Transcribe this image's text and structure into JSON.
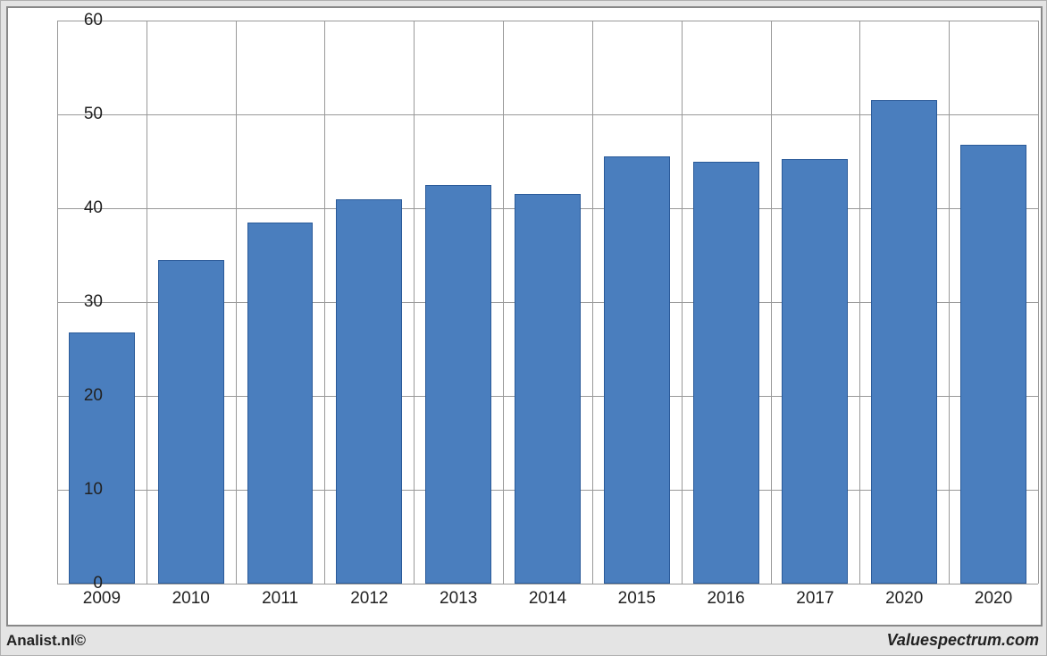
{
  "chart": {
    "type": "bar",
    "categories": [
      "2009",
      "2010",
      "2011",
      "2012",
      "2013",
      "2014",
      "2015",
      "2016",
      "2017",
      "2020",
      "2020"
    ],
    "values": [
      26.8,
      34.5,
      38.5,
      41.0,
      42.5,
      41.5,
      45.5,
      45.0,
      45.2,
      51.5,
      46.8
    ],
    "bar_color": "#4a7ebe",
    "bar_border_color": "#2a5a99",
    "bar_width_ratio": 0.74,
    "ylim": [
      0,
      60
    ],
    "ytick_step": 10,
    "yticks": [
      0,
      10,
      20,
      30,
      40,
      50,
      60
    ],
    "grid_color": "#999999",
    "background_color": "#ffffff",
    "outer_background": "#e4e4e4",
    "frame_border_color": "#888888",
    "label_fontsize": 19,
    "label_color": "#222222"
  },
  "footer": {
    "left": "Analist.nl©",
    "right": "Valuespectrum.com",
    "left_fontsize": 17,
    "right_fontsize": 18,
    "color": "#222222"
  }
}
